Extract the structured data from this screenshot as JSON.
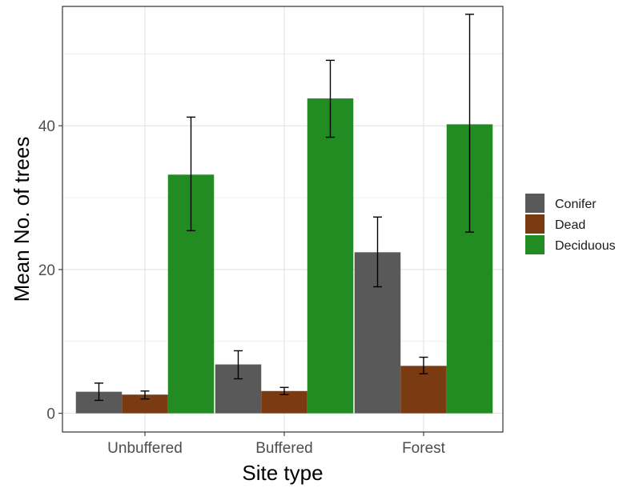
{
  "chart_data": {
    "type": "bar",
    "xlabel": "Site type",
    "ylabel": "Mean No. of trees",
    "categories": [
      "Unbuffered",
      "Buffered",
      "Forest"
    ],
    "ylim": [
      -2.6,
      56.6
    ],
    "yticks": [
      0,
      20,
      40
    ],
    "grid": true,
    "legend_position": "right",
    "series": [
      {
        "name": "Conifer",
        "color": "#595959",
        "values": [
          3.0,
          6.8,
          22.4
        ],
        "err_low": [
          1.8,
          4.8,
          17.6
        ],
        "err_high": [
          4.2,
          8.7,
          27.3
        ]
      },
      {
        "name": "Dead",
        "color": "#7a3a12",
        "values": [
          2.6,
          3.1,
          6.6
        ],
        "err_low": [
          2.0,
          2.6,
          5.5
        ],
        "err_high": [
          3.1,
          3.6,
          7.8
        ]
      },
      {
        "name": "Deciduous",
        "color": "#228b22",
        "values": [
          33.2,
          43.8,
          40.2
        ],
        "err_low": [
          25.4,
          38.4,
          25.2
        ],
        "err_high": [
          41.2,
          49.1,
          55.5
        ]
      }
    ]
  }
}
